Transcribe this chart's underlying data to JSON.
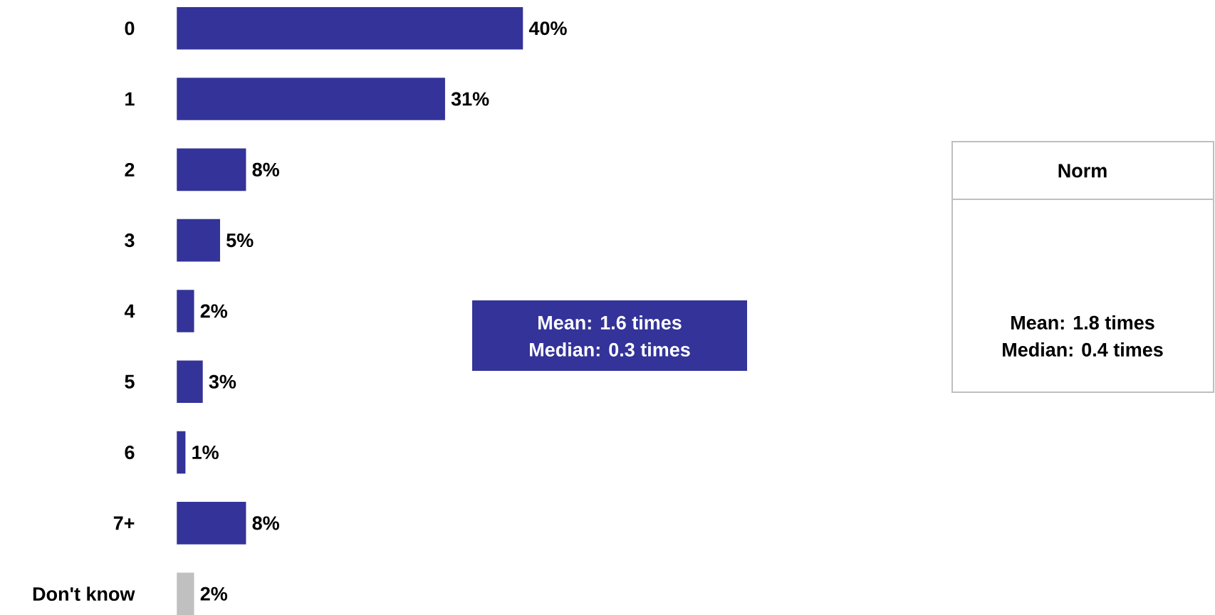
{
  "chart_data": {
    "type": "bar",
    "orientation": "horizontal",
    "categories": [
      "0",
      "1",
      "2",
      "3",
      "4",
      "5",
      "6",
      "7+",
      "Don't know"
    ],
    "values": [
      40,
      31,
      8,
      5,
      2,
      3,
      1,
      8,
      2
    ],
    "colors": [
      "#333399",
      "#333399",
      "#333399",
      "#333399",
      "#333399",
      "#333399",
      "#333399",
      "#333399",
      "#c0c0c0"
    ],
    "value_labels": [
      "40%",
      "31%",
      "8%",
      "5%",
      "2%",
      "3%",
      "1%",
      "8%",
      "2%"
    ],
    "annotations": [
      "Mean: 1.6 times",
      "Median: 0.3 times",
      "Norm",
      "Mean: 1.8 times",
      "Median: 0.4 times"
    ]
  }
}
